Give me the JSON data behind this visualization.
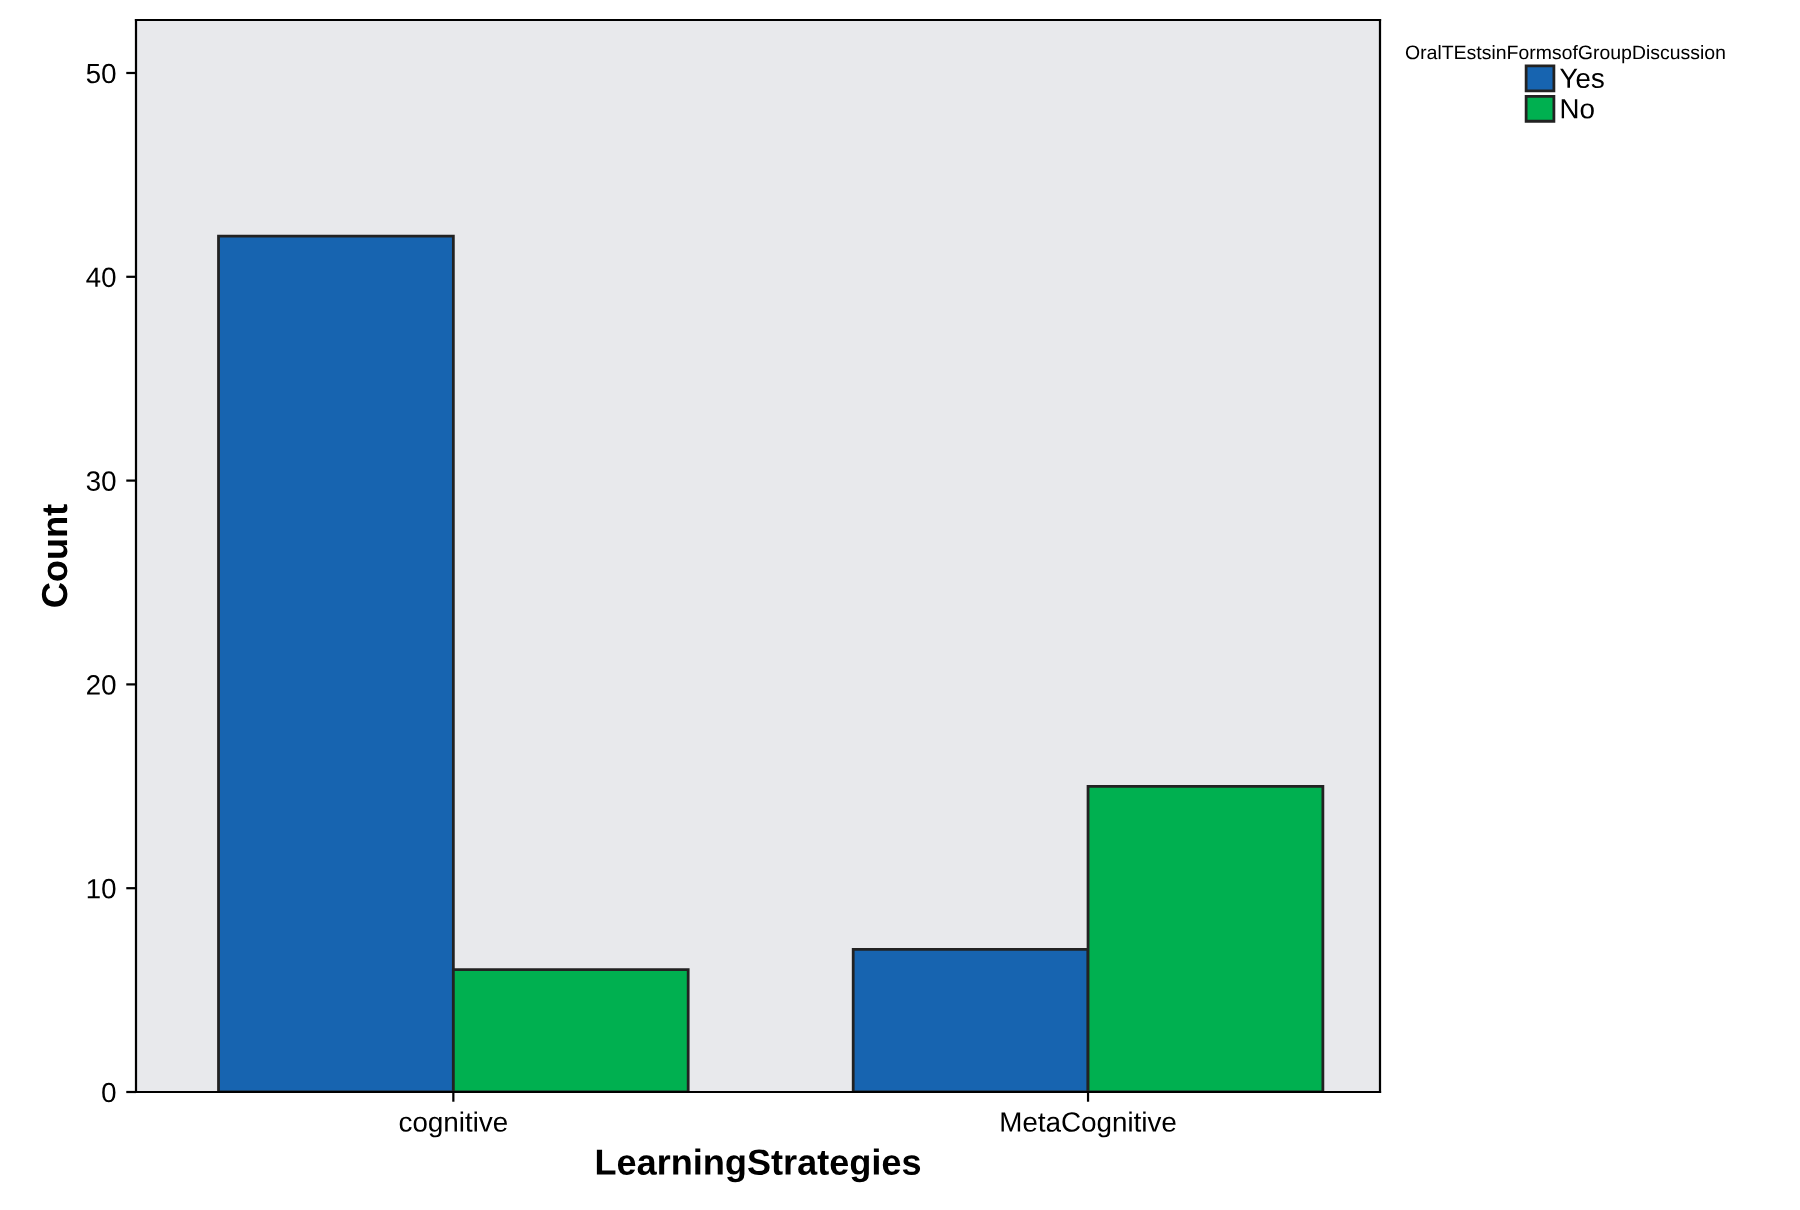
{
  "chart_data": {
    "type": "bar",
    "xlabel": "LearningStrategies",
    "ylabel": "Count",
    "legend_title": "OralTEstsinFormsofGroupDiscussion",
    "categories": [
      "cognitive",
      "MetaCognitive"
    ],
    "series": [
      {
        "name": "Yes",
        "color": "#1764b0",
        "values": [
          42,
          7
        ]
      },
      {
        "name": "No",
        "color": "#00b050",
        "values": [
          6,
          15
        ]
      }
    ],
    "ylim": [
      0,
      52.6
    ],
    "yticks": [
      0,
      10,
      20,
      30,
      40,
      50
    ],
    "grid": false,
    "legend": "top right"
  }
}
